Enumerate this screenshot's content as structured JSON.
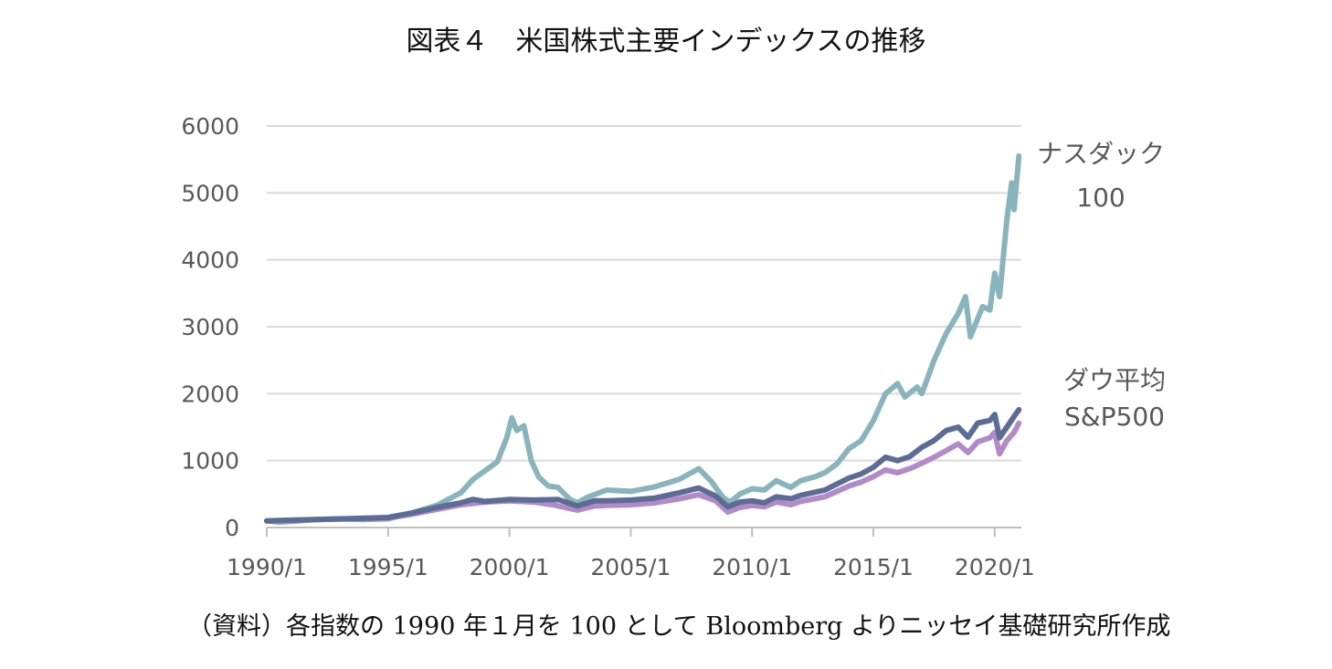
{
  "title": "図表４　米国株式主要インデックスの推移",
  "source_note": "（資料）各指数の 1990 年１月を 100 として Bloomberg よりニッセイ基礎研究所作成",
  "chart_data": {
    "type": "line",
    "title": "図表４　米国株式主要インデックスの推移",
    "xlabel": "",
    "ylabel": "",
    "xlim": [
      1990.0,
      2021.1
    ],
    "ylim": [
      0,
      6000
    ],
    "yticks": [
      0,
      1000,
      2000,
      3000,
      4000,
      5000,
      6000
    ],
    "xticks": [
      {
        "value": 1990,
        "label": "1990/1"
      },
      {
        "value": 1995,
        "label": "1995/1"
      },
      {
        "value": 2000,
        "label": "2000/1"
      },
      {
        "value": 2005,
        "label": "2005/1"
      },
      {
        "value": 2010,
        "label": "2010/1"
      },
      {
        "value": 2015,
        "label": "2015/1"
      },
      {
        "value": 2020,
        "label": "2020/1"
      }
    ],
    "grid": true,
    "series": [
      {
        "key": "nasdaq",
        "labels": [
          "ナスダック",
          "100"
        ],
        "color": "#8AB4BC",
        "points": [
          [
            1990,
            100
          ],
          [
            1990.5,
            80
          ],
          [
            1991,
            90
          ],
          [
            1992,
            120
          ],
          [
            1993,
            130
          ],
          [
            1994,
            120
          ],
          [
            1995,
            130
          ],
          [
            1996,
            220
          ],
          [
            1997,
            330
          ],
          [
            1998,
            520
          ],
          [
            1998.5,
            720
          ],
          [
            1999,
            850
          ],
          [
            1999.5,
            980
          ],
          [
            1999.9,
            1350
          ],
          [
            2000.1,
            1640
          ],
          [
            2000.3,
            1450
          ],
          [
            2000.6,
            1520
          ],
          [
            2000.9,
            1000
          ],
          [
            2001.2,
            760
          ],
          [
            2001.6,
            620
          ],
          [
            2002,
            600
          ],
          [
            2002.5,
            420
          ],
          [
            2002.8,
            370
          ],
          [
            2003.2,
            450
          ],
          [
            2004,
            560
          ],
          [
            2005,
            540
          ],
          [
            2006,
            610
          ],
          [
            2007,
            720
          ],
          [
            2007.8,
            880
          ],
          [
            2008.3,
            700
          ],
          [
            2008.8,
            450
          ],
          [
            2009.1,
            380
          ],
          [
            2009.5,
            500
          ],
          [
            2010,
            580
          ],
          [
            2010.5,
            560
          ],
          [
            2011,
            700
          ],
          [
            2011.6,
            600
          ],
          [
            2012,
            700
          ],
          [
            2012.6,
            760
          ],
          [
            2013,
            820
          ],
          [
            2013.5,
            950
          ],
          [
            2014,
            1180
          ],
          [
            2014.5,
            1300
          ],
          [
            2015,
            1600
          ],
          [
            2015.5,
            2000
          ],
          [
            2016,
            2150
          ],
          [
            2016.3,
            1950
          ],
          [
            2016.8,
            2100
          ],
          [
            2017,
            2000
          ],
          [
            2017.5,
            2500
          ],
          [
            2018,
            2900
          ],
          [
            2018.5,
            3200
          ],
          [
            2018.8,
            3450
          ],
          [
            2019,
            2850
          ],
          [
            2019.5,
            3300
          ],
          [
            2019.8,
            3250
          ],
          [
            2020,
            3800
          ],
          [
            2020.2,
            3450
          ],
          [
            2020.5,
            4600
          ],
          [
            2020.7,
            5150
          ],
          [
            2020.8,
            4750
          ],
          [
            2021,
            5550
          ]
        ]
      },
      {
        "key": "dow",
        "labels": [
          "ダウ平均"
        ],
        "color": "#5C6C95",
        "points": [
          [
            1990,
            100
          ],
          [
            1991,
            110
          ],
          [
            1992,
            120
          ],
          [
            1993,
            130
          ],
          [
            1994,
            140
          ],
          [
            1995,
            150
          ],
          [
            1996,
            220
          ],
          [
            1997,
            300
          ],
          [
            1998,
            370
          ],
          [
            1998.5,
            420
          ],
          [
            1999,
            390
          ],
          [
            2000,
            420
          ],
          [
            2001,
            410
          ],
          [
            2002,
            420
          ],
          [
            2002.8,
            320
          ],
          [
            2003.5,
            400
          ],
          [
            2004,
            400
          ],
          [
            2005,
            410
          ],
          [
            2006,
            440
          ],
          [
            2007,
            520
          ],
          [
            2007.8,
            590
          ],
          [
            2008.5,
            470
          ],
          [
            2009,
            310
          ],
          [
            2009.5,
            380
          ],
          [
            2010,
            400
          ],
          [
            2010.5,
            370
          ],
          [
            2011,
            460
          ],
          [
            2011.6,
            430
          ],
          [
            2012,
            480
          ],
          [
            2013,
            560
          ],
          [
            2013.5,
            650
          ],
          [
            2014,
            740
          ],
          [
            2014.5,
            800
          ],
          [
            2015,
            900
          ],
          [
            2015.5,
            1050
          ],
          [
            2016,
            1000
          ],
          [
            2016.5,
            1060
          ],
          [
            2017,
            1200
          ],
          [
            2017.5,
            1300
          ],
          [
            2018,
            1450
          ],
          [
            2018.5,
            1500
          ],
          [
            2018.9,
            1350
          ],
          [
            2019.3,
            1560
          ],
          [
            2019.8,
            1600
          ],
          [
            2020,
            1690
          ],
          [
            2020.2,
            1340
          ],
          [
            2020.5,
            1500
          ],
          [
            2020.8,
            1660
          ],
          [
            2021,
            1760
          ]
        ]
      },
      {
        "key": "sp500",
        "labels": [
          "S&P500"
        ],
        "color": "#B28AC8",
        "points": [
          [
            1990,
            100
          ],
          [
            1991,
            100
          ],
          [
            1992,
            120
          ],
          [
            1993,
            125
          ],
          [
            1994,
            130
          ],
          [
            1995,
            140
          ],
          [
            1996,
            200
          ],
          [
            1997,
            270
          ],
          [
            1998,
            340
          ],
          [
            1999,
            380
          ],
          [
            2000,
            400
          ],
          [
            2001,
            380
          ],
          [
            2001.8,
            340
          ],
          [
            2002.8,
            260
          ],
          [
            2003.5,
            320
          ],
          [
            2004,
            330
          ],
          [
            2005,
            340
          ],
          [
            2006,
            370
          ],
          [
            2007,
            430
          ],
          [
            2007.8,
            490
          ],
          [
            2008.5,
            400
          ],
          [
            2009,
            230
          ],
          [
            2009.5,
            300
          ],
          [
            2010,
            330
          ],
          [
            2010.5,
            310
          ],
          [
            2011,
            380
          ],
          [
            2011.6,
            340
          ],
          [
            2012,
            390
          ],
          [
            2013,
            460
          ],
          [
            2013.5,
            540
          ],
          [
            2014,
            620
          ],
          [
            2014.5,
            680
          ],
          [
            2015,
            760
          ],
          [
            2015.5,
            860
          ],
          [
            2016,
            820
          ],
          [
            2016.5,
            880
          ],
          [
            2017,
            960
          ],
          [
            2017.5,
            1050
          ],
          [
            2018,
            1150
          ],
          [
            2018.5,
            1250
          ],
          [
            2018.9,
            1120
          ],
          [
            2019.3,
            1280
          ],
          [
            2019.8,
            1340
          ],
          [
            2020,
            1420
          ],
          [
            2020.2,
            1100
          ],
          [
            2020.5,
            1300
          ],
          [
            2020.8,
            1420
          ],
          [
            2021,
            1560
          ]
        ]
      }
    ],
    "legend": "direct-labels-right"
  }
}
